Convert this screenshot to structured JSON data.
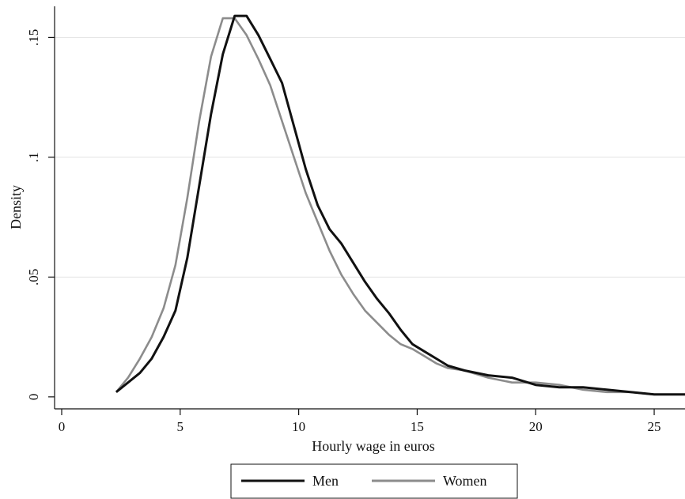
{
  "chart_data": {
    "type": "line",
    "title": "",
    "xlabel": "Hourly wage in euros",
    "ylabel": "Density",
    "xlim": [
      -0.3,
      26.3
    ],
    "ylim": [
      -0.005,
      0.163
    ],
    "xticks": [
      0,
      5,
      10,
      15,
      20,
      25
    ],
    "xtick_labels": [
      "0",
      "5",
      "10",
      "15",
      "20",
      "25"
    ],
    "yticks": [
      0,
      0.05,
      0.1,
      0.15
    ],
    "ytick_labels": [
      "0",
      ".05",
      ".1",
      ".15"
    ],
    "grid": "horizontal",
    "legend_position": "bottom",
    "colors": {
      "Men": "#111111",
      "Women": "#8c8c8c",
      "grid": "#e3e3e3"
    },
    "series": [
      {
        "name": "Men",
        "x": [
          2.3,
          2.8,
          3.3,
          3.8,
          4.3,
          4.8,
          5.3,
          5.8,
          6.3,
          6.8,
          7.3,
          7.8,
          8.3,
          8.8,
          9.3,
          9.8,
          10.3,
          10.8,
          11.3,
          11.8,
          12.3,
          12.8,
          13.3,
          13.8,
          14.3,
          14.8,
          15.3,
          15.8,
          16.3,
          17.0,
          18.0,
          19.0,
          20.0,
          21.0,
          22.0,
          23.0,
          24.0,
          25.0,
          26.3
        ],
        "y": [
          0.002,
          0.006,
          0.01,
          0.016,
          0.025,
          0.036,
          0.058,
          0.088,
          0.118,
          0.143,
          0.159,
          0.159,
          0.151,
          0.141,
          0.131,
          0.113,
          0.095,
          0.08,
          0.07,
          0.064,
          0.056,
          0.048,
          0.041,
          0.035,
          0.028,
          0.022,
          0.019,
          0.016,
          0.013,
          0.011,
          0.009,
          0.008,
          0.005,
          0.004,
          0.004,
          0.003,
          0.002,
          0.001,
          0.001
        ]
      },
      {
        "name": "Women",
        "x": [
          2.3,
          2.8,
          3.3,
          3.8,
          4.3,
          4.8,
          5.3,
          5.8,
          6.3,
          6.8,
          7.3,
          7.8,
          8.3,
          8.8,
          9.3,
          9.8,
          10.3,
          10.8,
          11.3,
          11.8,
          12.3,
          12.8,
          13.3,
          13.8,
          14.3,
          14.8,
          15.3,
          15.8,
          16.3,
          17.0,
          18.0,
          19.0,
          20.0,
          21.0,
          22.0,
          23.0,
          24.0,
          25.0,
          26.3
        ],
        "y": [
          0.002,
          0.008,
          0.016,
          0.025,
          0.037,
          0.055,
          0.083,
          0.115,
          0.142,
          0.158,
          0.158,
          0.151,
          0.141,
          0.13,
          0.115,
          0.1,
          0.085,
          0.073,
          0.061,
          0.051,
          0.043,
          0.036,
          0.031,
          0.026,
          0.022,
          0.02,
          0.017,
          0.014,
          0.012,
          0.011,
          0.008,
          0.006,
          0.006,
          0.005,
          0.003,
          0.002,
          0.002,
          0.001,
          0.001
        ]
      }
    ]
  }
}
